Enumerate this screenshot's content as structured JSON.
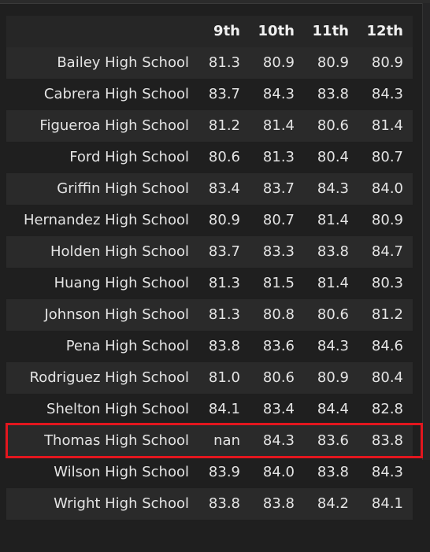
{
  "table": {
    "columns": [
      "",
      "9th",
      "10th",
      "11th",
      "12th"
    ],
    "rows": [
      {
        "school": "Bailey High School",
        "values": [
          "81.3",
          "80.9",
          "80.9",
          "80.9"
        ]
      },
      {
        "school": "Cabrera High School",
        "values": [
          "83.7",
          "84.3",
          "83.8",
          "84.3"
        ]
      },
      {
        "school": "Figueroa High School",
        "values": [
          "81.2",
          "81.4",
          "80.6",
          "81.4"
        ]
      },
      {
        "school": "Ford High School",
        "values": [
          "80.6",
          "81.3",
          "80.4",
          "80.7"
        ]
      },
      {
        "school": "Griffin High School",
        "values": [
          "83.4",
          "83.7",
          "84.3",
          "84.0"
        ]
      },
      {
        "school": "Hernandez High School",
        "values": [
          "80.9",
          "80.7",
          "81.4",
          "80.9"
        ]
      },
      {
        "school": "Holden High School",
        "values": [
          "83.7",
          "83.3",
          "83.8",
          "84.7"
        ]
      },
      {
        "school": "Huang High School",
        "values": [
          "81.3",
          "81.5",
          "81.4",
          "80.3"
        ]
      },
      {
        "school": "Johnson High School",
        "values": [
          "81.3",
          "80.8",
          "80.6",
          "81.2"
        ]
      },
      {
        "school": "Pena High School",
        "values": [
          "83.8",
          "83.6",
          "84.3",
          "84.6"
        ]
      },
      {
        "school": "Rodriguez High School",
        "values": [
          "81.0",
          "80.6",
          "80.9",
          "80.4"
        ]
      },
      {
        "school": "Shelton High School",
        "values": [
          "84.1",
          "83.4",
          "84.4",
          "82.8"
        ]
      },
      {
        "school": "Thomas High School",
        "values": [
          "nan",
          "84.3",
          "83.6",
          "83.8"
        ]
      },
      {
        "school": "Wilson High School",
        "values": [
          "83.9",
          "84.0",
          "83.8",
          "84.3"
        ]
      },
      {
        "school": "Wright High School",
        "values": [
          "83.8",
          "83.8",
          "84.2",
          "84.1"
        ]
      }
    ],
    "highlighted_row": "Thomas High School"
  },
  "colors": {
    "background": "#1f1f1f",
    "row_alt": "#2a2a2a",
    "highlight_border": "#e3161e"
  }
}
